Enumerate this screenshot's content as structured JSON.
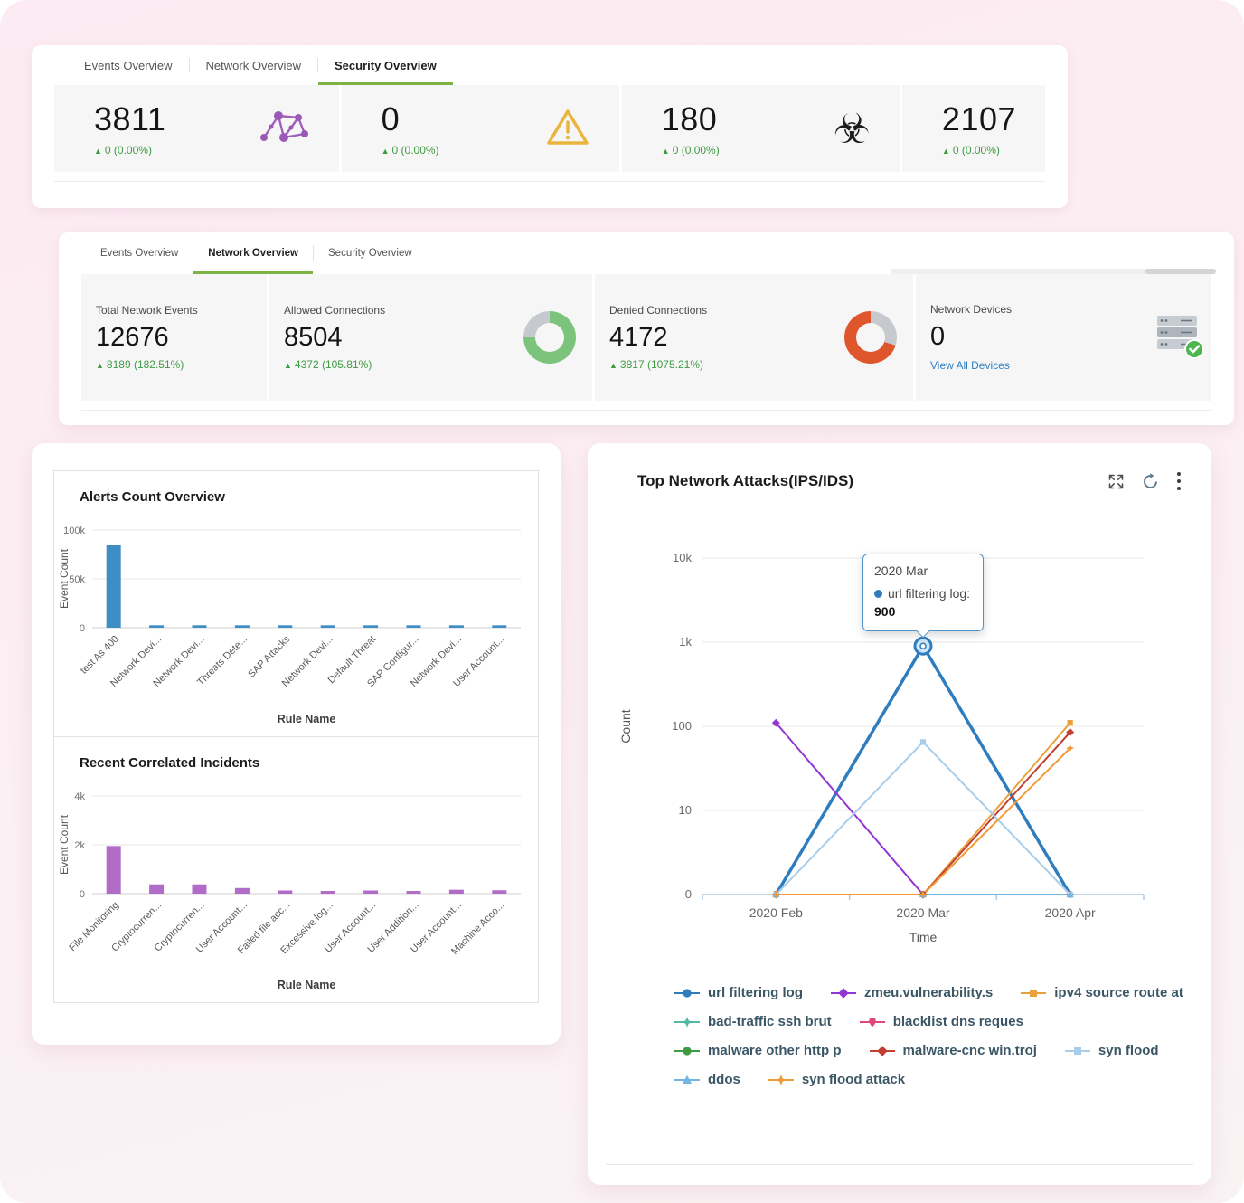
{
  "ui": {
    "up_arrow": "▲"
  },
  "security_panel": {
    "tabs": [
      {
        "label": "Events Overview"
      },
      {
        "label": "Network Overview"
      },
      {
        "label": "Security Overview"
      }
    ],
    "active_tab": "Security Overview",
    "accent_green": "#7cb342",
    "delta_color": "#3f9b41",
    "stats": [
      {
        "value": "3811",
        "delta": "0 (0.00%)",
        "icon": "threat-network-icon",
        "icon_color": "#9b59b6"
      },
      {
        "value": "0",
        "delta": "0 (0.00%)",
        "icon": "warning-triangle-icon",
        "icon_color": "#eab53e"
      },
      {
        "value": "180",
        "delta": "0 (0.00%)",
        "icon": "biohazard-icon",
        "icon_glyph": "☣",
        "icon_color": "#1c1c1c"
      },
      {
        "value": "2107",
        "delta": "0 (0.00%)"
      }
    ]
  },
  "network_panel": {
    "tabs": [
      {
        "label": "Events Overview"
      },
      {
        "label": "Network Overview"
      },
      {
        "label": "Security Overview"
      }
    ],
    "active_tab": "Network Overview",
    "stats": [
      {
        "label": "Total Network Events",
        "value": "12676",
        "delta": "8189 (182.51%)"
      },
      {
        "label": "Allowed Connections",
        "value": "8504",
        "delta": "4372 (105.81%)",
        "donut_color": "#7cc47c"
      },
      {
        "label": "Denied Connections",
        "value": "4172",
        "delta": "3817 (1075.21%)",
        "donut_color": "#e0562c"
      },
      {
        "label": "Network Devices",
        "value": "0",
        "link": "View All Devices",
        "icon": "server-check-icon"
      }
    ]
  },
  "alerts_panel": {
    "sections": [
      {
        "title": "Alerts Count Overview"
      },
      {
        "title": "Recent Correlated Incidents"
      }
    ]
  },
  "attacks_panel": {
    "title": "Top Network Attacks(IPS/IDS)",
    "tooltip": {
      "heading": "2020 Mar",
      "label": "url filtering log:",
      "value": "900"
    }
  },
  "chart_data": [
    {
      "id": "alerts",
      "type": "bar",
      "title": "Alerts Count Overview",
      "categories": [
        "test As 400",
        "Network Devi...",
        "Network Devi...",
        "Threats Dete...",
        "SAP Attacks",
        "Network Devi...",
        "Default Threat",
        "SAP Configur...",
        "Network Devi...",
        "User Account..."
      ],
      "values": [
        85000,
        2500,
        2500,
        2500,
        2500,
        2500,
        2500,
        2500,
        2500,
        2500
      ],
      "xlabel": "Rule Name",
      "ylabel": "Event Count",
      "ylim": [
        0,
        100000
      ],
      "yticks": [
        0,
        50000,
        100000
      ],
      "ytick_labels": [
        "0",
        "50k",
        "100k"
      ],
      "bar_color": "#3e8ec6",
      "grid": true
    },
    {
      "id": "incidents",
      "type": "bar",
      "title": "Recent Correlated Incidents",
      "categories": [
        "File Monitoring",
        "Cryptocurren...",
        "Cryptocurren...",
        "User Account...",
        "Failed file acc...",
        "Excessive log...",
        "User Account...",
        "User Addition...",
        "User Account...",
        "Machine Acco..."
      ],
      "values": [
        1950,
        380,
        380,
        230,
        130,
        110,
        130,
        110,
        160,
        140
      ],
      "xlabel": "Rule Name",
      "ylabel": "Event Count",
      "ylim": [
        0,
        4000
      ],
      "yticks": [
        0,
        2000,
        4000
      ],
      "ytick_labels": [
        "0",
        "2k",
        "4k"
      ],
      "bar_color": "#b06cc6",
      "grid": true
    },
    {
      "id": "attacks",
      "type": "line",
      "yaxis_type": "log",
      "title": "Top Network Attacks(IPS/IDS)",
      "x": [
        "2020 Feb",
        "2020 Mar",
        "2020 Apr"
      ],
      "xlabel": "Time",
      "ylabel": "Count",
      "ytick_labels": [
        "0",
        "10",
        "100",
        "1k",
        "10k"
      ],
      "legend_position": "bottom",
      "series": [
        {
          "name": "url filtering log",
          "color": "#2e7dbe",
          "marker": "circle",
          "width": 3.5,
          "values": [
            0,
            900,
            0
          ]
        },
        {
          "name": "zmeu.vulnerability.s",
          "color": "#9136d4",
          "marker": "diamond",
          "width": 2,
          "values": [
            110,
            0,
            0
          ]
        },
        {
          "name": "ipv4 source route at",
          "color": "#e9a23b",
          "marker": "square",
          "width": 2,
          "values": [
            0,
            0,
            110
          ]
        },
        {
          "name": "bad-traffic ssh brut",
          "color": "#53b8a5",
          "marker": "star",
          "width": 2,
          "values": [
            0,
            0,
            0
          ]
        },
        {
          "name": "blacklist dns reques",
          "color": "#e0457b",
          "marker": "pin",
          "width": 2,
          "values": [
            0,
            0,
            0
          ]
        },
        {
          "name": "malware other http p",
          "color": "#3f9b41",
          "marker": "circle",
          "width": 2,
          "values": [
            0,
            0,
            0
          ]
        },
        {
          "name": "malware-cnc win.troj",
          "color": "#c23f33",
          "marker": "diamond",
          "width": 2,
          "values": [
            0,
            0,
            85
          ]
        },
        {
          "name": "syn flood",
          "color": "#a8cdeb",
          "marker": "square",
          "width": 2,
          "values": [
            0,
            65,
            0
          ]
        },
        {
          "name": "ddos",
          "color": "#72b5e2",
          "marker": "triangle",
          "width": 2,
          "values": [
            0,
            0,
            0
          ]
        },
        {
          "name": "syn flood attack",
          "color": "#f09a38",
          "marker": "star",
          "width": 2,
          "values": [
            0,
            0,
            55
          ]
        }
      ],
      "highlight": {
        "series": 0,
        "x_index": 1
      }
    }
  ]
}
